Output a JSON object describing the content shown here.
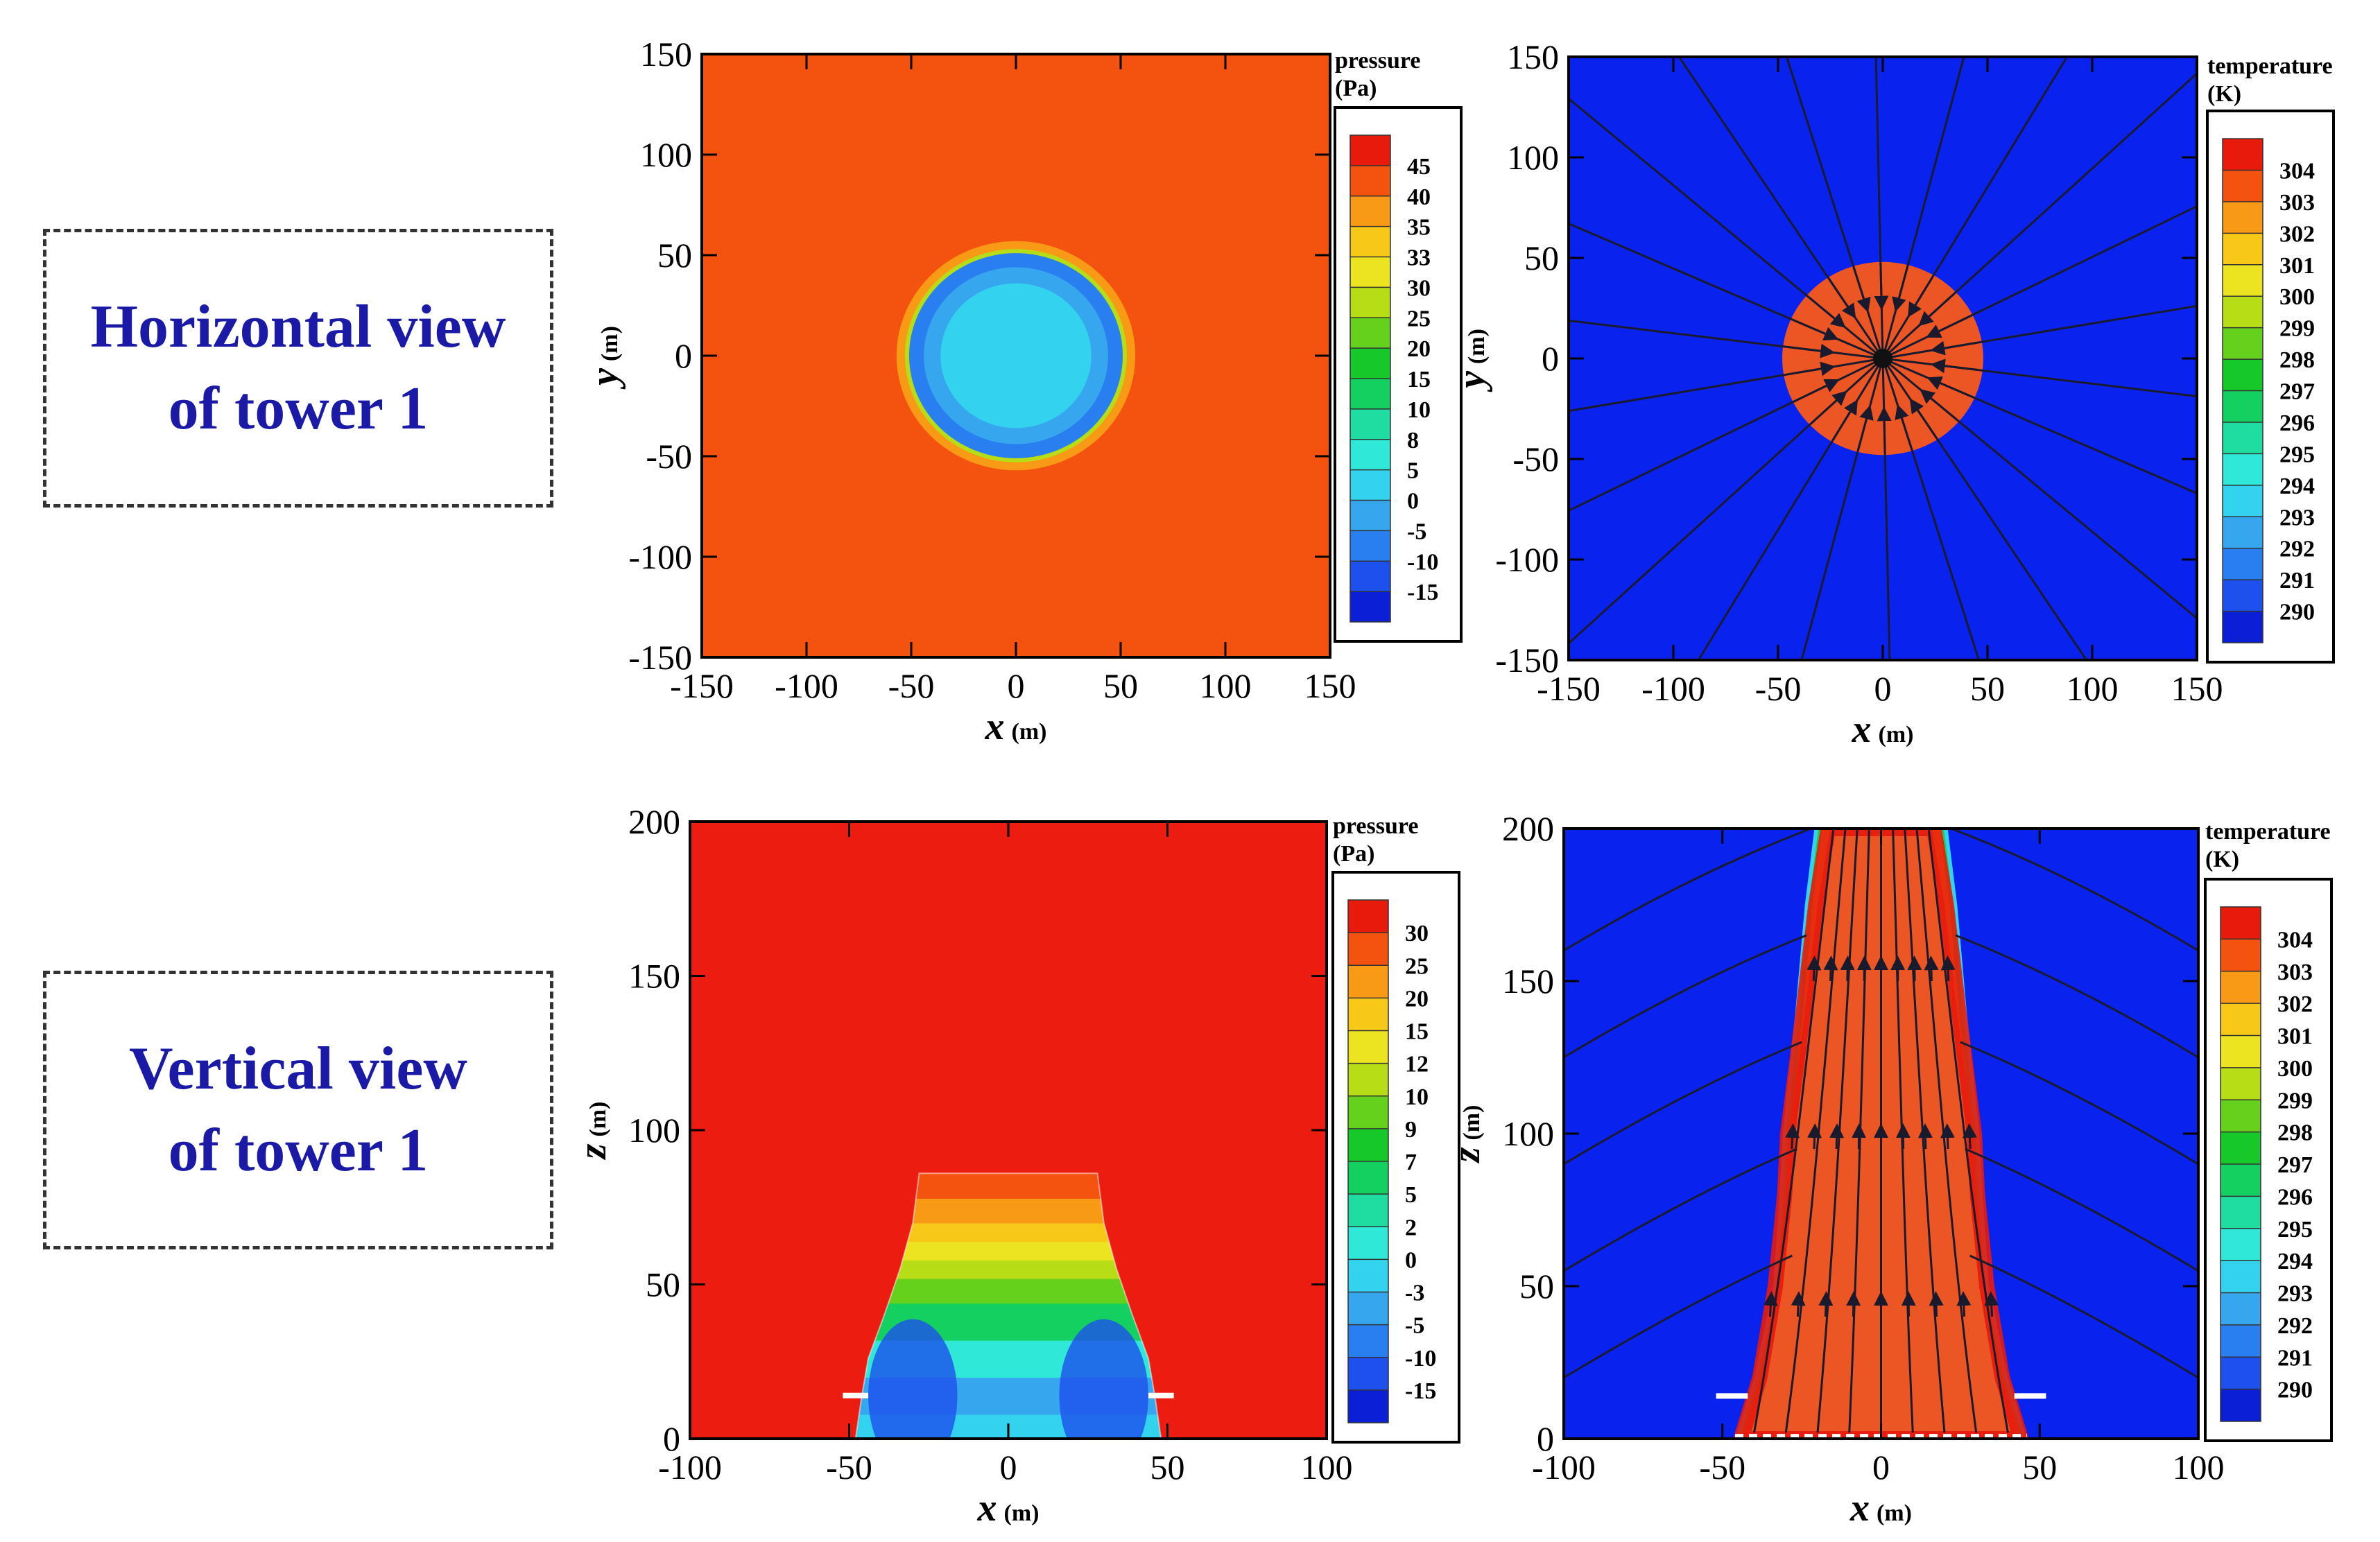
{
  "row_labels": [
    {
      "line1": "Horizontal view",
      "line2": "of tower 1"
    },
    {
      "line1": "Vertical view",
      "line2": "of tower 1"
    }
  ],
  "colors": {
    "label_text": "#1a1aa6",
    "box_border": "#333333",
    "background": "#ffffff"
  },
  "chart_data": [
    {
      "type": "heatmap",
      "title": "",
      "xlabel_var": "x",
      "xlabel_unit": "(m)",
      "ylabel_var": "y",
      "ylabel_unit": "(m)",
      "xlim": [
        -150,
        150
      ],
      "ylim": [
        -150,
        150
      ],
      "xticks": [
        -150,
        -100,
        -50,
        0,
        50,
        100,
        150
      ],
      "yticks": [
        -150,
        -100,
        -50,
        0,
        50,
        100,
        150
      ],
      "legend_title": [
        "pressure",
        "(Pa)"
      ],
      "legend_position": "right",
      "legend_levels": [
        "-15",
        "-10",
        "-5",
        "0",
        "5",
        "8",
        "10",
        "15",
        "20",
        "25",
        "30",
        "33",
        "35",
        "40",
        "45"
      ],
      "legend_colors": [
        "#0a1fd6",
        "#1d50ec",
        "#2a7ff0",
        "#36a7ee",
        "#33d2ee",
        "#2fe8d8",
        "#1fdca0",
        "#14d060",
        "#16c82a",
        "#66d11c",
        "#b6dd16",
        "#ece420",
        "#f8c818",
        "#f99a16",
        "#f4520f",
        "#e81a0c"
      ],
      "background_level_color": "#f4520f",
      "features": [
        {
          "shape": "disk",
          "center": [
            0,
            0
          ],
          "radius": 57,
          "color": "#f99a16"
        },
        {
          "shape": "disk",
          "center": [
            0,
            0
          ],
          "radius": 53,
          "color": "#b6dd16"
        },
        {
          "shape": "disk",
          "center": [
            0,
            0
          ],
          "radius": 51,
          "color": "#2a7ff0"
        },
        {
          "shape": "disk",
          "center": [
            0,
            0
          ],
          "radius": 44,
          "color": "#36a7ee"
        },
        {
          "shape": "disk",
          "center": [
            0,
            0
          ],
          "radius": 36,
          "color": "#33d2ee"
        }
      ],
      "streamlines": false
    },
    {
      "type": "heatmap",
      "title": "",
      "xlabel_var": "x",
      "xlabel_unit": "(m)",
      "ylabel_var": "y",
      "ylabel_unit": "(m)",
      "xlim": [
        -150,
        150
      ],
      "ylim": [
        -150,
        150
      ],
      "xticks": [
        -150,
        -100,
        -50,
        0,
        50,
        100,
        150
      ],
      "yticks": [
        -150,
        -100,
        -50,
        0,
        50,
        100,
        150
      ],
      "legend_title": [
        "temperature",
        "(K)"
      ],
      "legend_position": "right",
      "legend_levels": [
        "290",
        "291",
        "292",
        "293",
        "294",
        "295",
        "296",
        "297",
        "298",
        "299",
        "300",
        "301",
        "302",
        "303",
        "304"
      ],
      "legend_colors": [
        "#0a1fd6",
        "#1d50ec",
        "#2a7ff0",
        "#36a7ee",
        "#33d2ee",
        "#2fe8d8",
        "#1fdca0",
        "#14d060",
        "#16c82a",
        "#66d11c",
        "#b6dd16",
        "#ece420",
        "#f8c818",
        "#f99a16",
        "#f4520f",
        "#e81a0c"
      ],
      "background_level_color": "#0a22ee",
      "features": [
        {
          "shape": "disk",
          "center": [
            0,
            0
          ],
          "radius": 48,
          "color": "#ec5624"
        }
      ],
      "streamlines": "radial",
      "streamline_count": 22,
      "streamline_color": "#1a1a2e"
    },
    {
      "type": "heatmap",
      "title": "",
      "xlabel_var": "x",
      "xlabel_unit": "(m)",
      "ylabel_var": "z",
      "ylabel_unit": "(m)",
      "xlim": [
        -100,
        100
      ],
      "ylim": [
        0,
        200
      ],
      "xticks": [
        -100,
        -50,
        0,
        50,
        100
      ],
      "yticks": [
        0,
        50,
        100,
        150,
        200
      ],
      "legend_title": [
        "pressure",
        "(Pa)"
      ],
      "legend_position": "right",
      "legend_levels": [
        "-15",
        "-10",
        "-5",
        "-3",
        "0",
        "2",
        "5",
        "7",
        "9",
        "10",
        "12",
        "15",
        "20",
        "25",
        "30"
      ],
      "legend_colors": [
        "#0a1fd6",
        "#1d50ec",
        "#2a7ff0",
        "#36a7ee",
        "#33d2ee",
        "#2fe8d8",
        "#1fdca0",
        "#14d060",
        "#16c82a",
        "#66d11c",
        "#b6dd16",
        "#ece420",
        "#f8c818",
        "#f99a16",
        "#f4520f",
        "#e81a0c"
      ],
      "background_level_color": "#ec1c10",
      "tower": {
        "profile": [
          [
            -48,
            0
          ],
          [
            -46,
            14
          ],
          [
            -44,
            26
          ],
          [
            -39,
            40
          ],
          [
            -34,
            55
          ],
          [
            -30,
            70
          ],
          [
            -28,
            86
          ],
          [
            28,
            86
          ],
          [
            30,
            70
          ],
          [
            34,
            55
          ],
          [
            39,
            40
          ],
          [
            44,
            26
          ],
          [
            46,
            14
          ],
          [
            48,
            0
          ]
        ],
        "bands": [
          {
            "z": [
              0,
              8
            ],
            "color": "#33d2ee"
          },
          {
            "z": [
              8,
              20
            ],
            "color": "#36a7ee"
          },
          {
            "z": [
              20,
              32
            ],
            "color": "#2fe8d8"
          },
          {
            "z": [
              32,
              44
            ],
            "color": "#14d060"
          },
          {
            "z": [
              44,
              52
            ],
            "color": "#66d11c"
          },
          {
            "z": [
              52,
              58
            ],
            "color": "#b6dd16"
          },
          {
            "z": [
              58,
              64
            ],
            "color": "#ece420"
          },
          {
            "z": [
              64,
              70
            ],
            "color": "#f8c818"
          },
          {
            "z": [
              70,
              78
            ],
            "color": "#f99a16"
          },
          {
            "z": [
              78,
              88
            ],
            "color": "#f4520f"
          }
        ],
        "lip_z": 14,
        "lip_x": [
          -52,
          52
        ]
      },
      "streamlines": false
    },
    {
      "type": "heatmap",
      "title": "",
      "xlabel_var": "x",
      "xlabel_unit": "(m)",
      "ylabel_var": "z",
      "ylabel_unit": "(m)",
      "xlim": [
        -100,
        100
      ],
      "ylim": [
        0,
        200
      ],
      "xticks": [
        -100,
        -50,
        0,
        50,
        100
      ],
      "yticks": [
        0,
        50,
        100,
        150,
        200
      ],
      "legend_title": [
        "temperature",
        "(K)"
      ],
      "legend_position": "right",
      "legend_levels": [
        "290",
        "291",
        "292",
        "293",
        "294",
        "295",
        "296",
        "297",
        "298",
        "299",
        "300",
        "301",
        "302",
        "303",
        "304"
      ],
      "legend_colors": [
        "#0a1fd6",
        "#1d50ec",
        "#2a7ff0",
        "#36a7ee",
        "#33d2ee",
        "#2fe8d8",
        "#1fdca0",
        "#14d060",
        "#16c82a",
        "#66d11c",
        "#b6dd16",
        "#ece420",
        "#f8c818",
        "#f99a16",
        "#f4520f",
        "#e81a0c"
      ],
      "background_level_color": "#0a22ee",
      "plume": {
        "halo_profile": [
          [
            -46,
            0
          ],
          [
            -40,
            20
          ],
          [
            -34,
            50
          ],
          [
            -32,
            80
          ],
          [
            -31,
            100
          ],
          [
            -27,
            140
          ],
          [
            -24,
            175
          ],
          [
            -21,
            200
          ],
          [
            21,
            200
          ],
          [
            24,
            175
          ],
          [
            27,
            140
          ],
          [
            31,
            100
          ],
          [
            32,
            80
          ],
          [
            34,
            50
          ],
          [
            40,
            20
          ],
          [
            46,
            0
          ]
        ],
        "halo_colors": [
          "#33d2ee",
          "#14d060",
          "#ece420"
        ],
        "core_profile": [
          [
            -44,
            0
          ],
          [
            -38,
            20
          ],
          [
            -33,
            50
          ],
          [
            -30,
            80
          ],
          [
            -29,
            100
          ],
          [
            -24,
            140
          ],
          [
            -20,
            175
          ],
          [
            -16,
            200
          ],
          [
            16,
            200
          ],
          [
            20,
            175
          ],
          [
            24,
            140
          ],
          [
            29,
            100
          ],
          [
            30,
            80
          ],
          [
            33,
            50
          ],
          [
            38,
            20
          ],
          [
            44,
            0
          ]
        ],
        "core_color": "#ec5624",
        "lip_z": 14,
        "lip_x": [
          -52,
          52
        ]
      },
      "streamlines": "vertical",
      "streamline_count": 9,
      "streamline_color": "#1a1a2e"
    }
  ]
}
